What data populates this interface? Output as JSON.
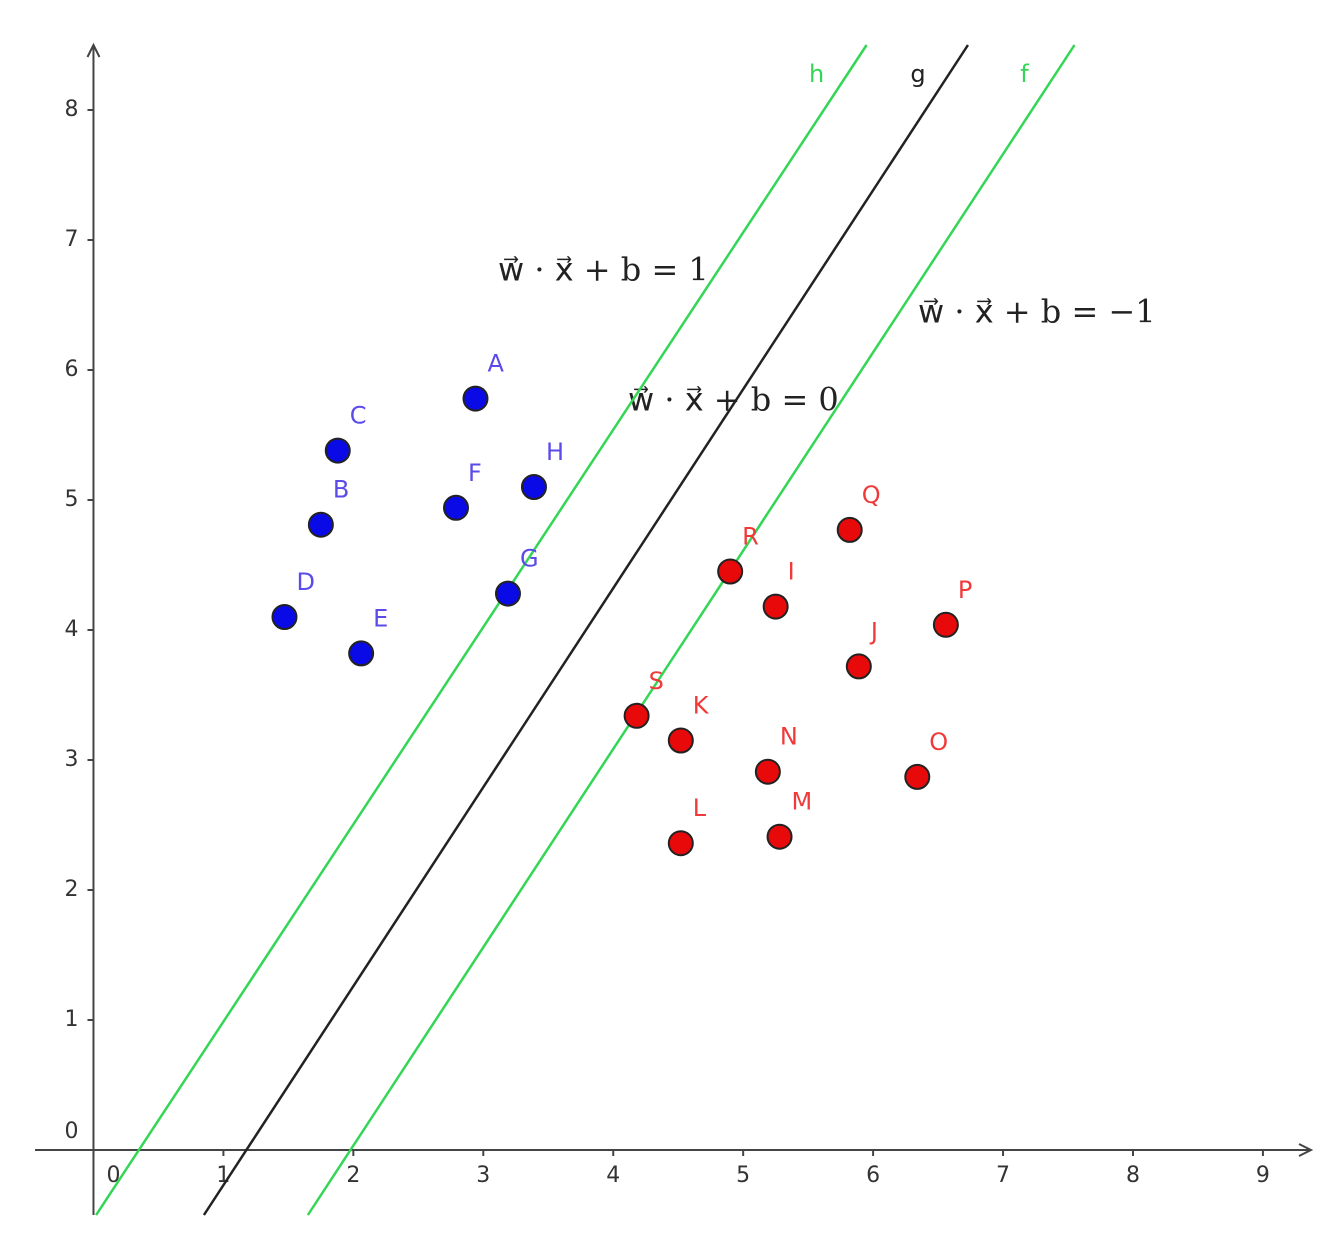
{
  "chart_data": {
    "type": "scatter",
    "xlim": [
      -0.45,
      9.37
    ],
    "ylim": [
      -0.5,
      8.5
    ],
    "xticks": [
      0,
      1,
      2,
      3,
      4,
      5,
      6,
      7,
      8,
      9
    ],
    "yticks": [
      0,
      1,
      2,
      3,
      4,
      5,
      6,
      7,
      8
    ],
    "grid": false,
    "groups": [
      {
        "color": "#0a0ae6",
        "label_color": "#5b4be8",
        "labels": [
          "A",
          "B",
          "C",
          "D",
          "E",
          "F",
          "G",
          "H"
        ],
        "x": [
          2.94,
          1.75,
          1.88,
          1.47,
          2.06,
          2.79,
          3.19,
          3.39
        ],
        "y": [
          5.78,
          4.81,
          5.38,
          4.1,
          3.82,
          4.94,
          4.28,
          5.1
        ]
      },
      {
        "color": "#e80a0a",
        "label_color": "#f03a3a",
        "labels": [
          "I",
          "J",
          "K",
          "L",
          "M",
          "N",
          "O",
          "P",
          "Q",
          "R",
          "S"
        ],
        "x": [
          5.25,
          5.89,
          4.52,
          4.52,
          5.28,
          5.19,
          6.34,
          6.56,
          5.82,
          4.9,
          4.18
        ],
        "y": [
          4.18,
          3.72,
          3.15,
          2.36,
          2.41,
          2.91,
          2.87,
          4.04,
          4.77,
          4.45,
          3.34
        ]
      }
    ],
    "lines": [
      {
        "name": "h",
        "color": "#33d655",
        "x": [
          0.02,
          5.95
        ],
        "y": [
          -0.5,
          8.5
        ]
      },
      {
        "name": "g",
        "color": "#222222",
        "x": [
          0.85,
          6.73
        ],
        "y": [
          -0.5,
          8.5
        ]
      },
      {
        "name": "f",
        "color": "#33d655",
        "x": [
          1.65,
          7.55
        ],
        "y": [
          -0.5,
          8.5
        ]
      }
    ],
    "annotations": [
      "w⃗ · x⃗ + b = 1",
      "w⃗ · x⃗ + b = −1",
      "w⃗ · x⃗ + b = 0"
    ]
  }
}
